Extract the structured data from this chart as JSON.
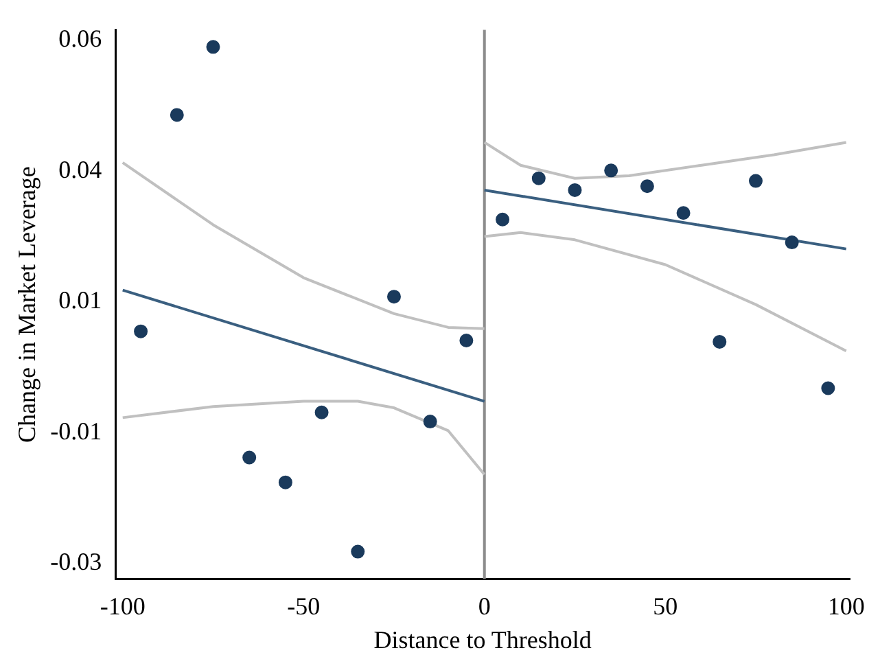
{
  "chart_data": {
    "type": "scatter",
    "xlabel": "Distance to Threshold",
    "ylabel": "Change in Market Leverage",
    "xlim": [
      -102,
      101
    ],
    "xticks": [
      -100,
      -50,
      0,
      50,
      100
    ],
    "ylim": [
      -0.0274,
      0.0566
    ],
    "yticks": [
      {
        "value": -0.025,
        "label": "-0.03"
      },
      {
        "value": -0.005,
        "label": "-0.01"
      },
      {
        "value": 0.015,
        "label": "0.01"
      },
      {
        "value": 0.035,
        "label": "0.04"
      },
      {
        "value": 0.055,
        "label": "0.06"
      }
    ],
    "grid": false,
    "legend": false,
    "marker": "circle",
    "ref_lines": [
      {
        "axis": "x",
        "value": 0,
        "color": "#8c8c8c"
      }
    ],
    "series": [
      {
        "color": "#1a3a5c",
        "x": [
          -95,
          -85,
          -75,
          -65,
          -55,
          -45,
          -35,
          -25,
          -15,
          -5,
          5,
          15,
          25,
          35,
          45,
          55,
          65,
          75,
          85,
          95
        ],
        "values": [
          0.0105,
          0.0436,
          0.054,
          -0.0088,
          -0.0126,
          -0.0019,
          -0.0232,
          0.0158,
          -0.0033,
          0.0091,
          0.0276,
          0.0339,
          0.0321,
          0.0351,
          0.0327,
          0.0286,
          0.0089,
          0.0335,
          0.0241,
          0.0018
        ]
      },
      {
        "type": "line",
        "color": "#3a5f80",
        "marker": "none",
        "x": [
          -100,
          0
        ],
        "values": [
          0.0168,
          -0.0002
        ]
      },
      {
        "type": "line",
        "color": "#3a5f80",
        "marker": "none",
        "x": [
          0,
          100
        ],
        "values": [
          0.0321,
          0.0231
        ]
      },
      {
        "type": "line",
        "color": "#c0c0c0",
        "marker": "none",
        "x": [
          -100,
          -75,
          -50,
          -25,
          -10,
          0
        ],
        "values": [
          0.0363,
          0.0268,
          0.0187,
          0.0132,
          0.0111,
          0.0109
        ]
      },
      {
        "type": "line",
        "color": "#c0c0c0",
        "marker": "none",
        "x": [
          -100,
          -75,
          -50,
          -35,
          -25,
          -10,
          0
        ],
        "values": [
          -0.0027,
          -0.001,
          -0.0002,
          -0.0002,
          -0.0012,
          -0.0047,
          -0.0114
        ]
      },
      {
        "type": "line",
        "color": "#c0c0c0",
        "marker": "none",
        "x": [
          0,
          10,
          25,
          40,
          60,
          80,
          100
        ],
        "values": [
          0.0394,
          0.0359,
          0.0339,
          0.0343,
          0.0359,
          0.0375,
          0.0394
        ]
      },
      {
        "type": "line",
        "color": "#c0c0c0",
        "marker": "none",
        "x": [
          0,
          10,
          25,
          50,
          75,
          100
        ],
        "values": [
          0.025,
          0.0256,
          0.0245,
          0.0207,
          0.0146,
          0.0075
        ]
      }
    ]
  }
}
